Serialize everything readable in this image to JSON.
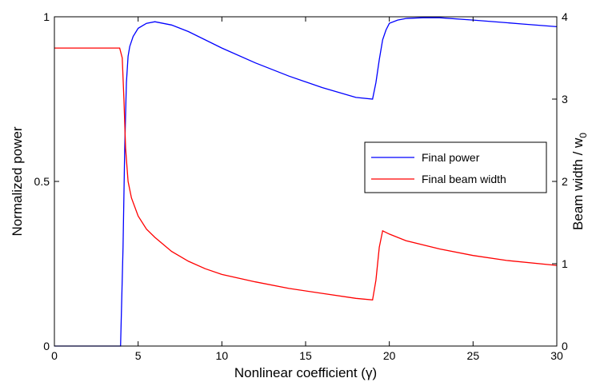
{
  "chart_data": {
    "type": "line",
    "xlabel": "Nonlinear coefficient (γ)",
    "ylabel_left": "Normalized power",
    "ylabel_right_main": "Beam width / w",
    "ylabel_right_sub": "0",
    "xlim": [
      0,
      30
    ],
    "ylim_left": [
      0,
      1
    ],
    "ylim_right": [
      0,
      4
    ],
    "xticks": [
      0,
      5,
      10,
      15,
      20,
      25,
      30
    ],
    "xtick_labels": [
      "0",
      "5",
      "10",
      "15",
      "20",
      "25",
      "30"
    ],
    "yticks_left": [
      0,
      0.5,
      1
    ],
    "ytick_labels_left": [
      "0",
      "0.5",
      "1"
    ],
    "yticks_right": [
      0,
      1,
      2,
      3,
      4
    ],
    "ytick_labels_right": [
      "0",
      "1",
      "2",
      "3",
      "4"
    ],
    "grid": false,
    "legend_position": "center-right",
    "series": [
      {
        "name": "Final power",
        "axis": "left",
        "color": "#0000ff",
        "x": [
          0,
          2,
          3.95,
          4.1,
          4.2,
          4.3,
          4.4,
          4.5,
          4.7,
          5.0,
          5.5,
          6.0,
          7.0,
          8.0,
          10.0,
          12.0,
          14.0,
          16.0,
          18.0,
          19.0,
          19.2,
          19.4,
          19.6,
          19.8,
          20.0,
          20.5,
          21.0,
          22.0,
          23.0,
          25.0,
          28.0,
          30.0
        ],
        "y": [
          0,
          0,
          0,
          0.3,
          0.6,
          0.8,
          0.88,
          0.91,
          0.94,
          0.965,
          0.98,
          0.985,
          0.975,
          0.955,
          0.905,
          0.86,
          0.82,
          0.785,
          0.755,
          0.75,
          0.8,
          0.87,
          0.93,
          0.96,
          0.98,
          0.99,
          0.995,
          0.997,
          0.997,
          0.99,
          0.978,
          0.97
        ]
      },
      {
        "name": "Final beam width",
        "axis": "right",
        "color": "#ff0000",
        "x": [
          0,
          2,
          3.9,
          4.05,
          4.15,
          4.25,
          4.4,
          4.6,
          5.0,
          5.5,
          6.0,
          7.0,
          8.0,
          9.0,
          10.0,
          12.0,
          14.0,
          16.0,
          18.0,
          19.0,
          19.2,
          19.4,
          19.6,
          20.0,
          21.0,
          23.0,
          25.0,
          27.0,
          30.0
        ],
        "y": [
          3.62,
          3.62,
          3.62,
          3.5,
          3.0,
          2.4,
          2.0,
          1.8,
          1.58,
          1.42,
          1.32,
          1.15,
          1.03,
          0.94,
          0.87,
          0.78,
          0.7,
          0.64,
          0.58,
          0.56,
          0.8,
          1.2,
          1.4,
          1.36,
          1.28,
          1.18,
          1.1,
          1.04,
          0.98
        ]
      }
    ]
  }
}
